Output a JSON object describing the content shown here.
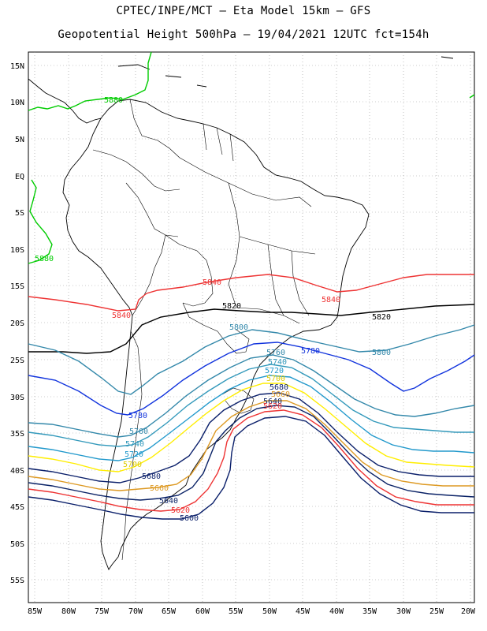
{
  "header": {
    "line1": "CPTEC/INPE/MCT –  Eta Model 15km – GFS",
    "line2": "Geopotential Height 500hPa – 19/04/2021 12UTC fct=154h"
  },
  "map": {
    "lat_labels": [
      "15N",
      "10N",
      "5N",
      "EQ",
      "5S",
      "10S",
      "15S",
      "20S",
      "25S",
      "30S",
      "35S",
      "40S",
      "45S",
      "50S",
      "55S"
    ],
    "lon_labels": [
      "85W",
      "80W",
      "75W",
      "70W",
      "65W",
      "60W",
      "55W",
      "50W",
      "45W",
      "40W",
      "35W",
      "30W",
      "25W",
      "20W"
    ],
    "gridlines": true,
    "contours": [
      {
        "value": "5880",
        "color": "#00cc00"
      },
      {
        "value": "5840",
        "color": "#ee3333"
      },
      {
        "value": "5820",
        "color": "#000000"
      },
      {
        "value": "5800",
        "color": "#3388aa"
      },
      {
        "value": "5780",
        "color": "#1133dd"
      },
      {
        "value": "5760",
        "color": "#3388aa"
      },
      {
        "value": "5740",
        "color": "#3399bb"
      },
      {
        "value": "5720",
        "color": "#2299cc"
      },
      {
        "value": "5700",
        "color": "#ffee00"
      },
      {
        "value": "5680",
        "color": "#0a1f6a"
      },
      {
        "value": "5660",
        "color": "#dd9922"
      },
      {
        "value": "5640",
        "color": "#0a2266"
      },
      {
        "value": "5620",
        "color": "#ee3333"
      },
      {
        "value": "5600",
        "color": "#0a1f6a"
      }
    ]
  }
}
